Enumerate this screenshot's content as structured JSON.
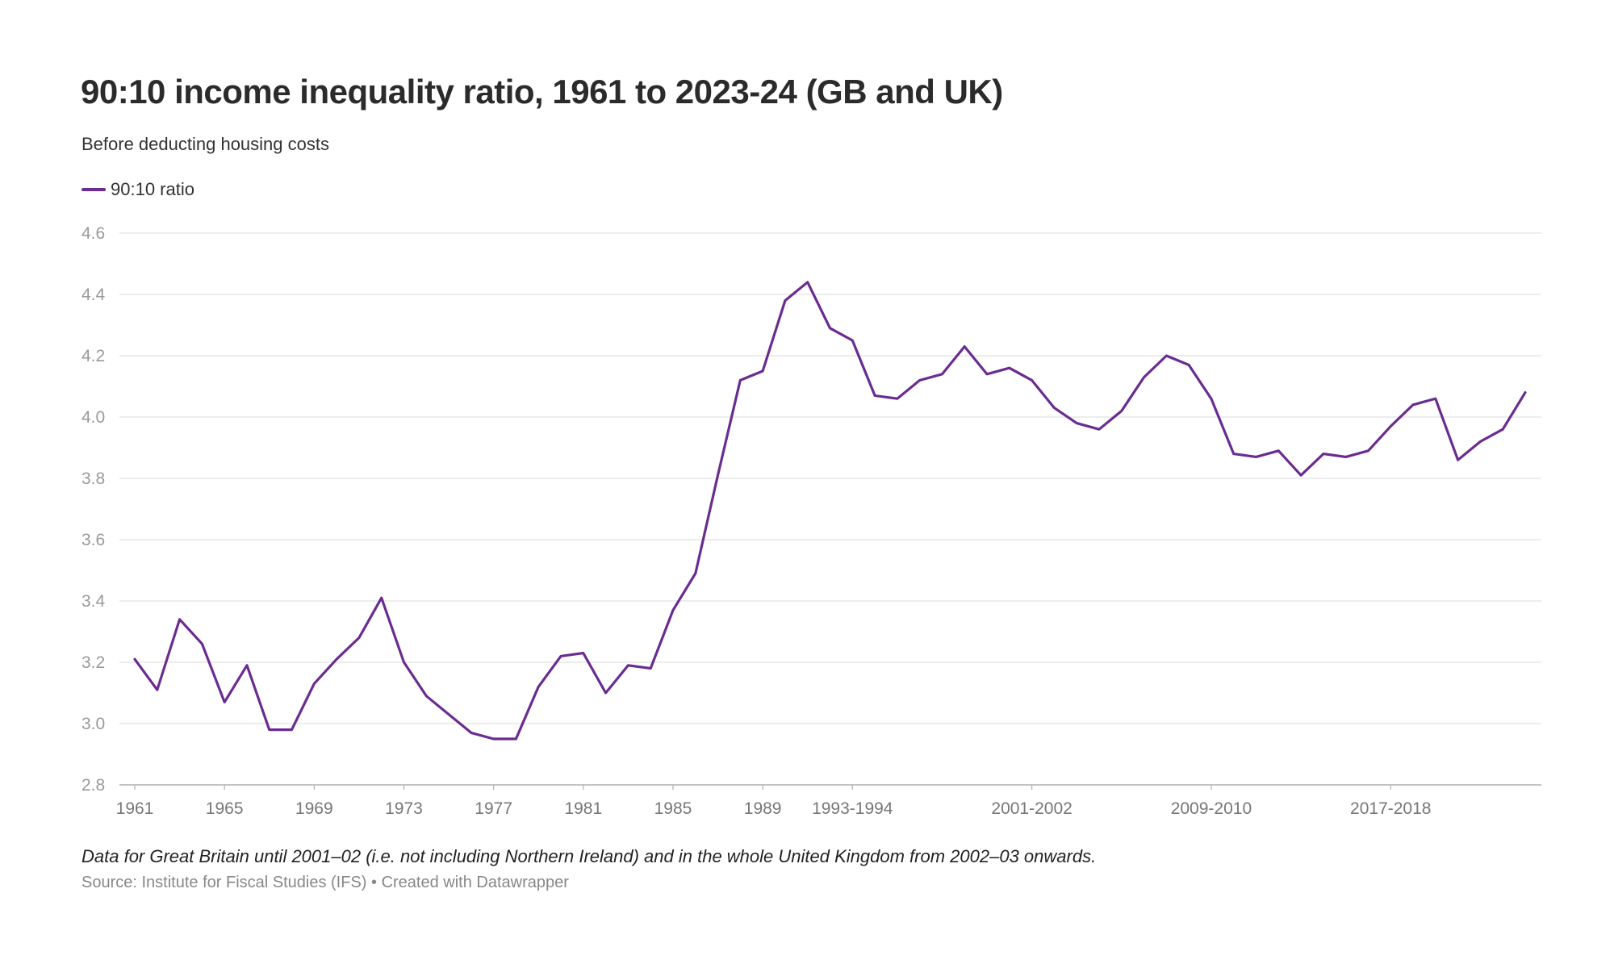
{
  "title": "90:10 income inequality ratio, 1961 to 2023-24 (GB and UK)",
  "subtitle": "Before deducting housing costs",
  "note": "Data for Great Britain until 2001–02 (i.e. not including Northern Ireland) and in the whole United Kingdom from 2002–03 onwards.",
  "source": "Source: Institute for Fiscal Studies (IFS) • Created with Datawrapper",
  "colors": {
    "series": "#6a2c91",
    "grid": "#e2e2e2",
    "axis": "#b0b0b0",
    "tick_text": "#9a9a9a",
    "xtick_text": "#777777"
  },
  "chart_data": {
    "type": "line",
    "legend_position": "top-left",
    "grid": true,
    "ylim": [
      2.8,
      4.6
    ],
    "yticks": [
      "4.6",
      "4.4",
      "4.2",
      "4.0",
      "3.8",
      "3.6",
      "3.4",
      "3.2",
      "3.0",
      "2.8"
    ],
    "xticks": [
      {
        "index": 0,
        "label": "1961"
      },
      {
        "index": 4,
        "label": "1965"
      },
      {
        "index": 8,
        "label": "1969"
      },
      {
        "index": 12,
        "label": "1973"
      },
      {
        "index": 16,
        "label": "1977"
      },
      {
        "index": 20,
        "label": "1981"
      },
      {
        "index": 24,
        "label": "1985"
      },
      {
        "index": 28,
        "label": "1989"
      },
      {
        "index": 32,
        "label": "1993-1994"
      },
      {
        "index": 40,
        "label": "2001-2002"
      },
      {
        "index": 48,
        "label": "2009-2010"
      },
      {
        "index": 56,
        "label": "2017-2018"
      }
    ],
    "categories": [
      "1961",
      "1962",
      "1963",
      "1964",
      "1965",
      "1966",
      "1967",
      "1968",
      "1969",
      "1970",
      "1971",
      "1972",
      "1973",
      "1974",
      "1975",
      "1976",
      "1977",
      "1978",
      "1979",
      "1980",
      "1981",
      "1982",
      "1983",
      "1984",
      "1985",
      "1986",
      "1987",
      "1988",
      "1989",
      "1990",
      "1991",
      "1992",
      "1993-1994",
      "1994-1995",
      "1995-1996",
      "1996-1997",
      "1997-1998",
      "1998-1999",
      "1999-2000",
      "2000-2001",
      "2001-2002",
      "2002-2003",
      "2003-2004",
      "2004-2005",
      "2005-2006",
      "2006-2007",
      "2007-2008",
      "2008-2009",
      "2009-2010",
      "2010-2011",
      "2011-2012",
      "2012-2013",
      "2013-2014",
      "2014-2015",
      "2015-2016",
      "2016-2017",
      "2017-2018",
      "2018-2019",
      "2019-2020",
      "2020-2021",
      "2021-2022",
      "2022-2023",
      "2023-2024"
    ],
    "series": [
      {
        "name": "90:10 ratio",
        "values": [
          3.21,
          3.11,
          3.34,
          3.26,
          3.07,
          3.19,
          2.98,
          2.98,
          3.13,
          3.21,
          3.28,
          3.41,
          3.2,
          3.09,
          3.03,
          2.97,
          2.95,
          2.95,
          3.12,
          3.22,
          3.23,
          3.1,
          3.19,
          3.18,
          3.37,
          3.49,
          3.81,
          4.12,
          4.15,
          4.38,
          4.44,
          4.29,
          4.25,
          4.07,
          4.06,
          4.12,
          4.14,
          4.23,
          4.14,
          4.16,
          4.12,
          4.03,
          3.98,
          3.96,
          4.02,
          4.13,
          4.2,
          4.17,
          4.06,
          3.88,
          3.87,
          3.89,
          3.81,
          3.88,
          3.87,
          3.89,
          3.97,
          4.04,
          4.06,
          3.86,
          3.92,
          3.96,
          4.08
        ]
      }
    ]
  }
}
